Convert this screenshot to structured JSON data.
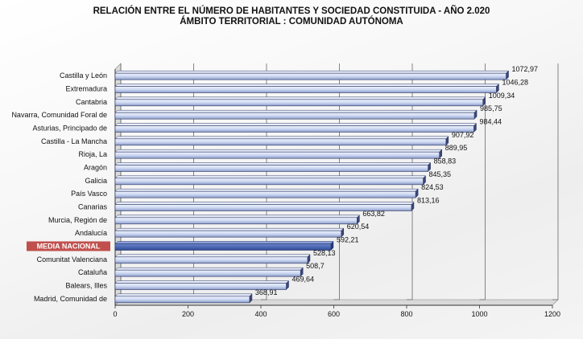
{
  "title_line1": "RELACIÓN ENTRE EL NÚMERO DE HABITANTES Y SOCIEDAD CONSTITUIDA - AÑO 2.020",
  "title_line2": "ÁMBITO TERRITORIAL : COMUNIDAD AUTÓNOMA",
  "chart_data": {
    "type": "bar",
    "orientation": "horizontal",
    "title": "RELACIÓN ENTRE EL NÚMERO DE HABITANTES Y SOCIEDAD CONSTITUIDA - AÑO 2.020",
    "subtitle": "ÁMBITO TERRITORIAL : COMUNIDAD AUTÓNOMA",
    "categories": [
      "Castilla y León",
      "Extremadura",
      "Cantabria",
      "Navarra, Comunidad Foral de",
      "Asturias, Principado de",
      "Castilla - La Mancha",
      "Rioja, La",
      "Aragón",
      "Galicia",
      "País Vasco",
      "Canarias",
      "Murcia, Región de",
      "Andalucía",
      "MEDIA NACIONAL",
      "Comunitat Valenciana",
      "Cataluña",
      "Balears, Illes",
      "Madrid, Comunidad de"
    ],
    "values": [
      1072.97,
      1046.28,
      1009.34,
      985.75,
      984.44,
      907.92,
      889.95,
      858.83,
      845.35,
      824.53,
      813.16,
      663.82,
      620.54,
      592.21,
      528.13,
      508.7,
      469.64,
      368.91
    ],
    "value_labels": [
      "1072,97",
      "1046,28",
      "1009,34",
      "985,75",
      "984,44",
      "907,92",
      "889,95",
      "858,83",
      "845,35",
      "824,53",
      "813,16",
      "663,82",
      "620,54",
      "592,21",
      "528,13",
      "508,7",
      "469,64",
      "368,91"
    ],
    "highlight_category": "MEDIA NACIONAL",
    "xlim": [
      0,
      1200
    ],
    "xticks": [
      0,
      200,
      400,
      600,
      800,
      1000,
      1200
    ],
    "xlabel": "",
    "ylabel": "",
    "grid": true,
    "colors": {
      "bar": "#cdd8f2",
      "bar_edge": "#2a3560",
      "bar_dark": "#8a9ac8",
      "highlight": "#c0504d",
      "grid": "#555555"
    }
  }
}
